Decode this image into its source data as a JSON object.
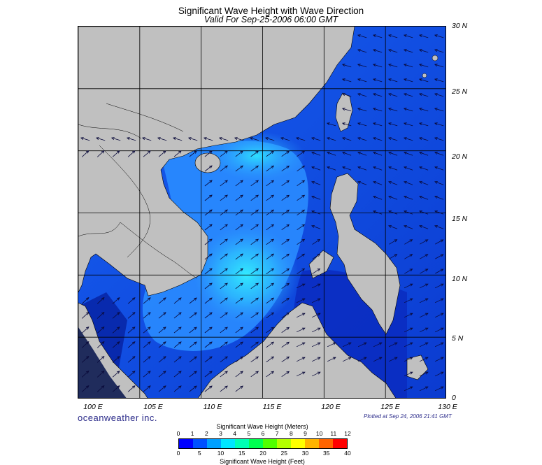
{
  "header": {
    "title": "Significant Wave Height with Wave Direction",
    "subtitle": "Valid For Sep-25-2006 06:00 GMT"
  },
  "map": {
    "region": "South China Sea",
    "lon_range": [
      100,
      130
    ],
    "lat_range": [
      0,
      30
    ],
    "lat_labels": [
      "30 N",
      "25 N",
      "20 N",
      "15 N",
      "10 N",
      "5 N",
      "0"
    ],
    "lon_labels": [
      "100 E",
      "105 E",
      "110 E",
      "115 E",
      "120 E",
      "125 E",
      "130 E"
    ],
    "colors": {
      "land": "#c0c0c0",
      "sea_dark": "#0a2fb8",
      "sea_mid": "#1a5cf0",
      "sea_light": "#2ea0ff",
      "sea_peak": "#33f0ff",
      "grid": "#000000"
    }
  },
  "footer": {
    "brand": "oceanweather inc.",
    "plotted": "Plotted at Sep 24, 2006 21:41 GMT"
  },
  "colorbar": {
    "title_top": "Significant Wave Height (Meters)",
    "title_bottom": "Significant Wave Height (Feet)",
    "meters": [
      "0",
      "1",
      "2",
      "3",
      "4",
      "5",
      "6",
      "7",
      "8",
      "9",
      "10",
      "11",
      "12"
    ],
    "feet": [
      "0",
      "5",
      "10",
      "15",
      "20",
      "25",
      "30",
      "35",
      "40"
    ],
    "colors": [
      "#0000ff",
      "#0050ff",
      "#00a0ff",
      "#00e6ff",
      "#00ffb4",
      "#00ff50",
      "#50ff00",
      "#b4ff00",
      "#ffff00",
      "#ffb400",
      "#ff6400",
      "#ff0000"
    ]
  }
}
